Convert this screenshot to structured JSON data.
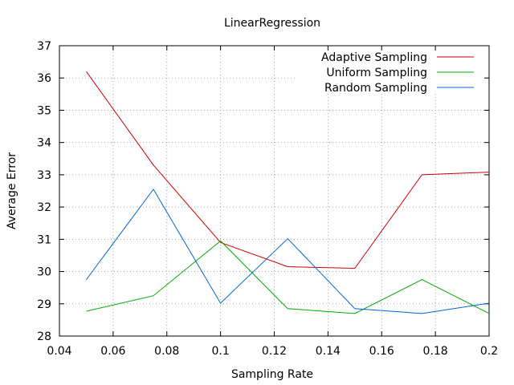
{
  "chart_data": {
    "type": "line",
    "title": "LinearRegression",
    "xlabel": "Sampling Rate",
    "ylabel": "Average Error",
    "xlim": [
      0.04,
      0.2
    ],
    "ylim": [
      28,
      37
    ],
    "x_ticks": [
      "0.04",
      "0.06",
      "0.08",
      "0.1",
      "0.12",
      "0.14",
      "0.16",
      "0.18",
      "0.2"
    ],
    "y_ticks": [
      "28",
      "29",
      "30",
      "31",
      "32",
      "33",
      "34",
      "35",
      "36",
      "37"
    ],
    "grid": true,
    "legend_position": "top-right",
    "series": [
      {
        "name": "Adaptive Sampling",
        "color": "#cc0000",
        "x": [
          0.05,
          0.075,
          0.1,
          0.125,
          0.15,
          0.175,
          0.2
        ],
        "values": [
          36.2,
          33.3,
          30.9,
          30.15,
          30.1,
          33.0,
          33.08
        ]
      },
      {
        "name": "Uniform Sampling",
        "color": "#00aa00",
        "x": [
          0.05,
          0.075,
          0.1,
          0.125,
          0.15,
          0.175,
          0.2
        ],
        "values": [
          28.77,
          29.25,
          30.95,
          28.85,
          28.7,
          29.75,
          28.7
        ]
      },
      {
        "name": "Random Sampling",
        "color": "#0066cc",
        "x": [
          0.05,
          0.075,
          0.1,
          0.125,
          0.15,
          0.175,
          0.2
        ],
        "values": [
          29.75,
          32.55,
          29.02,
          31.02,
          28.85,
          28.7,
          29.02
        ]
      }
    ]
  }
}
